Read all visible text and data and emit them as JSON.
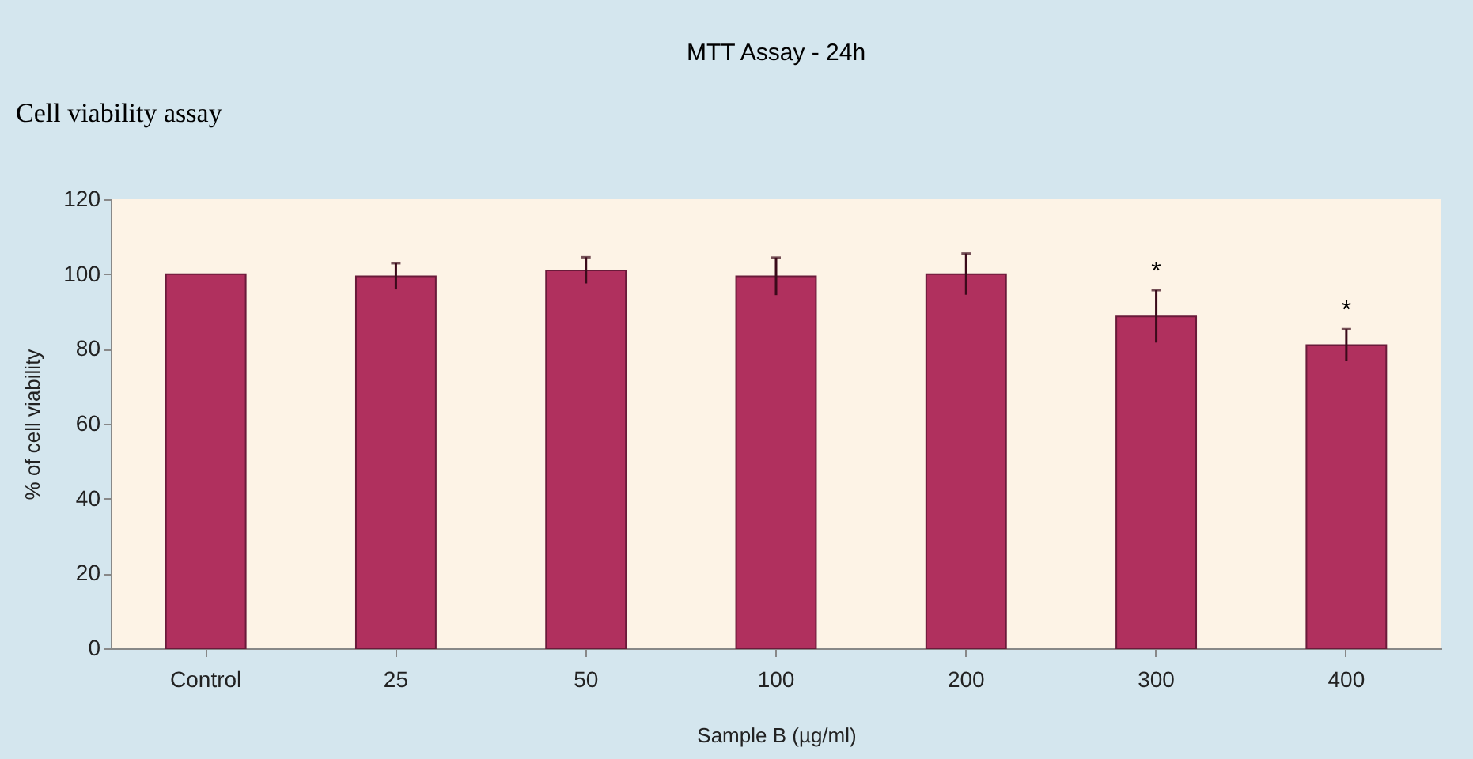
{
  "chart_data": {
    "type": "bar",
    "title": "MTT Assay - 24h",
    "xlabel": "Sample B (µg/ml)",
    "ylabel": "% of cell viability",
    "categories": [
      "Control",
      "25",
      "50",
      "100",
      "200",
      "300",
      "400"
    ],
    "values": [
      100,
      99.4,
      101,
      99.4,
      100,
      88.7,
      81
    ],
    "errors": [
      null,
      3.5,
      3.5,
      5,
      5.5,
      7,
      4.3
    ],
    "color": "#b0305e",
    "ylim": [
      0,
      120
    ],
    "yticks": [
      0,
      20,
      40,
      60,
      80,
      100,
      120
    ],
    "grid": false,
    "annotations": [
      "Cell viability assay",
      {
        "text": "*",
        "x": "300",
        "y": 95.7
      },
      {
        "text": "*",
        "x": "400",
        "y": 85.3
      }
    ]
  }
}
